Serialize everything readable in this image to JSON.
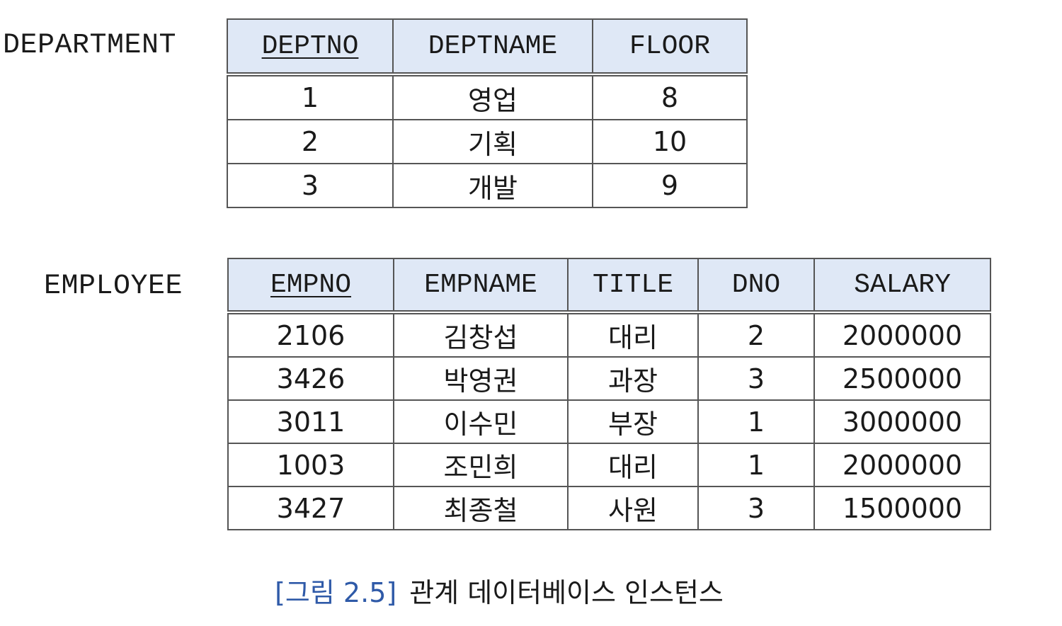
{
  "department": {
    "relation_name": "DEPARTMENT",
    "columns": [
      "DEPTNO",
      "DEPTNAME",
      "FLOOR"
    ],
    "key_column": "DEPTNO",
    "rows": [
      [
        "1",
        "영업",
        "8"
      ],
      [
        "2",
        "기획",
        "10"
      ],
      [
        "3",
        "개발",
        "9"
      ]
    ]
  },
  "employee": {
    "relation_name": "EMPLOYEE",
    "columns": [
      "EMPNO",
      "EMPNAME",
      "TITLE",
      "DNO",
      "SALARY"
    ],
    "key_column": "EMPNO",
    "rows": [
      [
        "2106",
        "김창섭",
        "대리",
        "2",
        "2000000"
      ],
      [
        "3426",
        "박영권",
        "과장",
        "3",
        "2500000"
      ],
      [
        "3011",
        "이수민",
        "부장",
        "1",
        "3000000"
      ],
      [
        "1003",
        "조민희",
        "대리",
        "1",
        "2000000"
      ],
      [
        "3427",
        "최종철",
        "사원",
        "3",
        "1500000"
      ]
    ]
  },
  "caption": {
    "figure_label": "[그림 2.5]",
    "text": "관계 데이터베이스 인스턴스"
  },
  "colors": {
    "header_fill": "#dfe8f6",
    "caption_label": "#2f5aa8"
  }
}
